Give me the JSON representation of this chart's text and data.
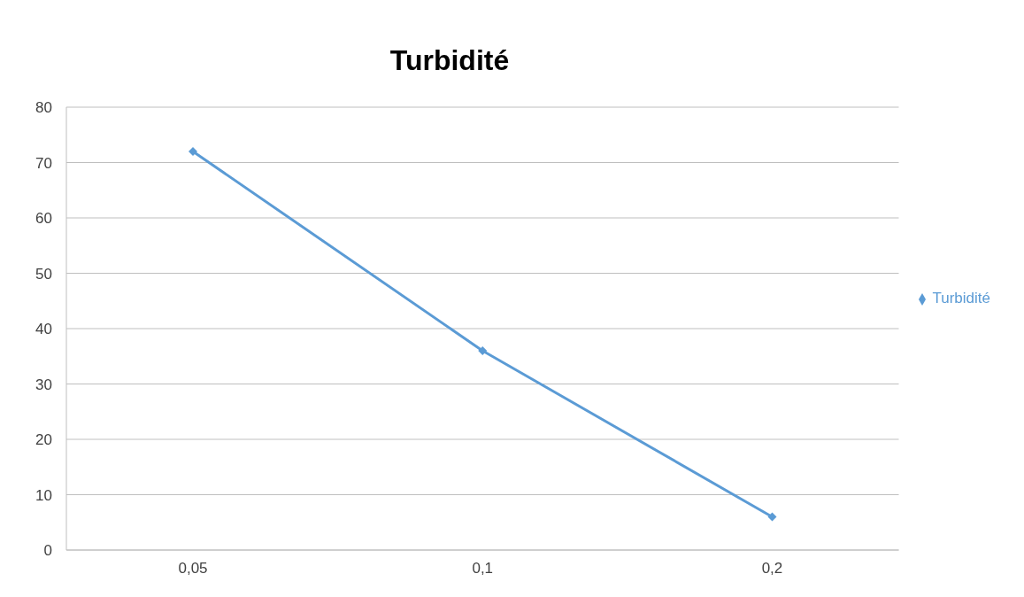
{
  "chart_data": {
    "type": "line",
    "title": "Turbidité",
    "categories": [
      "0,05",
      "0,1",
      "0,2"
    ],
    "series": [
      {
        "name": "Turbidité",
        "color": "#5b9bd5",
        "values": [
          72,
          36,
          6
        ]
      }
    ],
    "ylim": [
      0,
      80
    ],
    "yticks": [
      0,
      10,
      20,
      30,
      40,
      50,
      60,
      70,
      80
    ],
    "grid": "y",
    "legend": "right",
    "marker": "diamond",
    "line_style": "solid"
  }
}
